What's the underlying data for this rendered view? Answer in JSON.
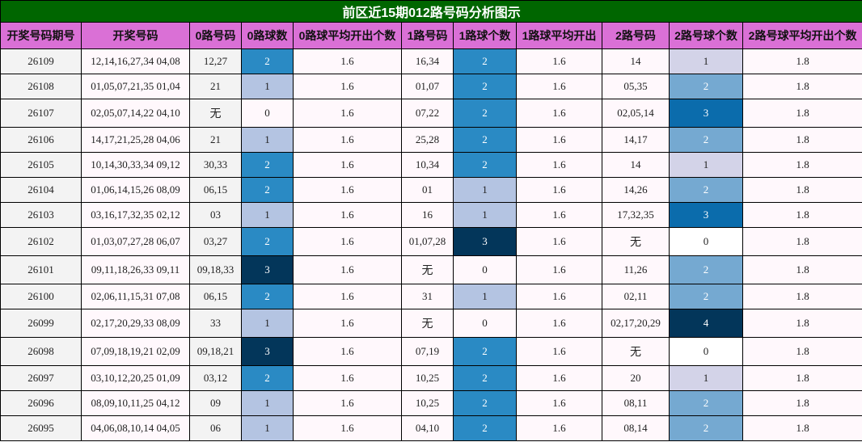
{
  "title": "前区近15期012路号码分析图示",
  "headers": [
    "开奖号码期号",
    "开奖号码",
    "0路号码",
    "0路球数",
    "0路球平均开出个数",
    "1路号码",
    "1路球个数",
    "1路球平均开出",
    "2路号码",
    "2路号球个数",
    "2路号球平均开出个数"
  ],
  "colors": {
    "title_bg": "#006600",
    "header_bg": "#da70d6",
    "count_scale_0_1_2_3": [
      "#fff8fc",
      "#b4c4e2",
      "#2a8ac4",
      "#03365a"
    ],
    "road2_scale_0_1_2_3_4": [
      "#fff8fc",
      "#d3d3e8",
      "#75a9d1",
      "#0b6cac",
      "#03365a"
    ]
  },
  "rows": [
    {
      "period": "26109",
      "numbers": "12,14,16,27,34 04,08",
      "r0": "12,27",
      "c0": "2",
      "a0": "1.6",
      "r1": "16,34",
      "c1": "2",
      "a1": "1.6",
      "r2": "14",
      "c2": "1",
      "a2": "1.8"
    },
    {
      "period": "26108",
      "numbers": "01,05,07,21,35 01,04",
      "r0": "21",
      "c0": "1",
      "a0": "1.6",
      "r1": "01,07",
      "c1": "2",
      "a1": "1.6",
      "r2": "05,35",
      "c2": "2",
      "a2": "1.8"
    },
    {
      "period": "26107",
      "numbers": "02,05,07,14,22 04,10",
      "r0": "无",
      "c0": "0",
      "a0": "1.6",
      "r1": "07,22",
      "c1": "2",
      "a1": "1.6",
      "r2": "02,05,14",
      "c2": "3",
      "a2": "1.8"
    },
    {
      "period": "26106",
      "numbers": "14,17,21,25,28 04,06",
      "r0": "21",
      "c0": "1",
      "a0": "1.6",
      "r1": "25,28",
      "c1": "2",
      "a1": "1.6",
      "r2": "14,17",
      "c2": "2",
      "a2": "1.8"
    },
    {
      "period": "26105",
      "numbers": "10,14,30,33,34 09,12",
      "r0": "30,33",
      "c0": "2",
      "a0": "1.6",
      "r1": "10,34",
      "c1": "2",
      "a1": "1.6",
      "r2": "14",
      "c2": "1",
      "a2": "1.8"
    },
    {
      "period": "26104",
      "numbers": "01,06,14,15,26 08,09",
      "r0": "06,15",
      "c0": "2",
      "a0": "1.6",
      "r1": "01",
      "c1": "1",
      "a1": "1.6",
      "r2": "14,26",
      "c2": "2",
      "a2": "1.8"
    },
    {
      "period": "26103",
      "numbers": "03,16,17,32,35 02,12",
      "r0": "03",
      "c0": "1",
      "a0": "1.6",
      "r1": "16",
      "c1": "1",
      "a1": "1.6",
      "r2": "17,32,35",
      "c2": "3",
      "a2": "1.8"
    },
    {
      "period": "26102",
      "numbers": "01,03,07,27,28 06,07",
      "r0": "03,27",
      "c0": "2",
      "a0": "1.6",
      "r1": "01,07,28",
      "c1": "3",
      "a1": "1.6",
      "r2": "无",
      "c2": "0",
      "a2": "1.8"
    },
    {
      "period": "26101",
      "numbers": "09,11,18,26,33 09,11",
      "r0": "09,18,33",
      "c0": "3",
      "a0": "1.6",
      "r1": "无",
      "c1": "0",
      "a1": "1.6",
      "r2": "11,26",
      "c2": "2",
      "a2": "1.8"
    },
    {
      "period": "26100",
      "numbers": "02,06,11,15,31 07,08",
      "r0": "06,15",
      "c0": "2",
      "a0": "1.6",
      "r1": "31",
      "c1": "1",
      "a1": "1.6",
      "r2": "02,11",
      "c2": "2",
      "a2": "1.8"
    },
    {
      "period": "26099",
      "numbers": "02,17,20,29,33 08,09",
      "r0": "33",
      "c0": "1",
      "a0": "1.6",
      "r1": "无",
      "c1": "0",
      "a1": "1.6",
      "r2": "02,17,20,29",
      "c2": "4",
      "a2": "1.8"
    },
    {
      "period": "26098",
      "numbers": "07,09,18,19,21 02,09",
      "r0": "09,18,21",
      "c0": "3",
      "a0": "1.6",
      "r1": "07,19",
      "c1": "2",
      "a1": "1.6",
      "r2": "无",
      "c2": "0",
      "a2": "1.8"
    },
    {
      "period": "26097",
      "numbers": "03,10,12,20,25 01,09",
      "r0": "03,12",
      "c0": "2",
      "a0": "1.6",
      "r1": "10,25",
      "c1": "2",
      "a1": "1.6",
      "r2": "20",
      "c2": "1",
      "a2": "1.8"
    },
    {
      "period": "26096",
      "numbers": "08,09,10,11,25 04,12",
      "r0": "09",
      "c0": "1",
      "a0": "1.6",
      "r1": "10,25",
      "c1": "2",
      "a1": "1.6",
      "r2": "08,11",
      "c2": "2",
      "a2": "1.8"
    },
    {
      "period": "26095",
      "numbers": "04,06,08,10,14 04,05",
      "r0": "06",
      "c0": "1",
      "a0": "1.6",
      "r1": "04,10",
      "c1": "2",
      "a1": "1.6",
      "r2": "08,14",
      "c2": "2",
      "a2": "1.8"
    }
  ]
}
